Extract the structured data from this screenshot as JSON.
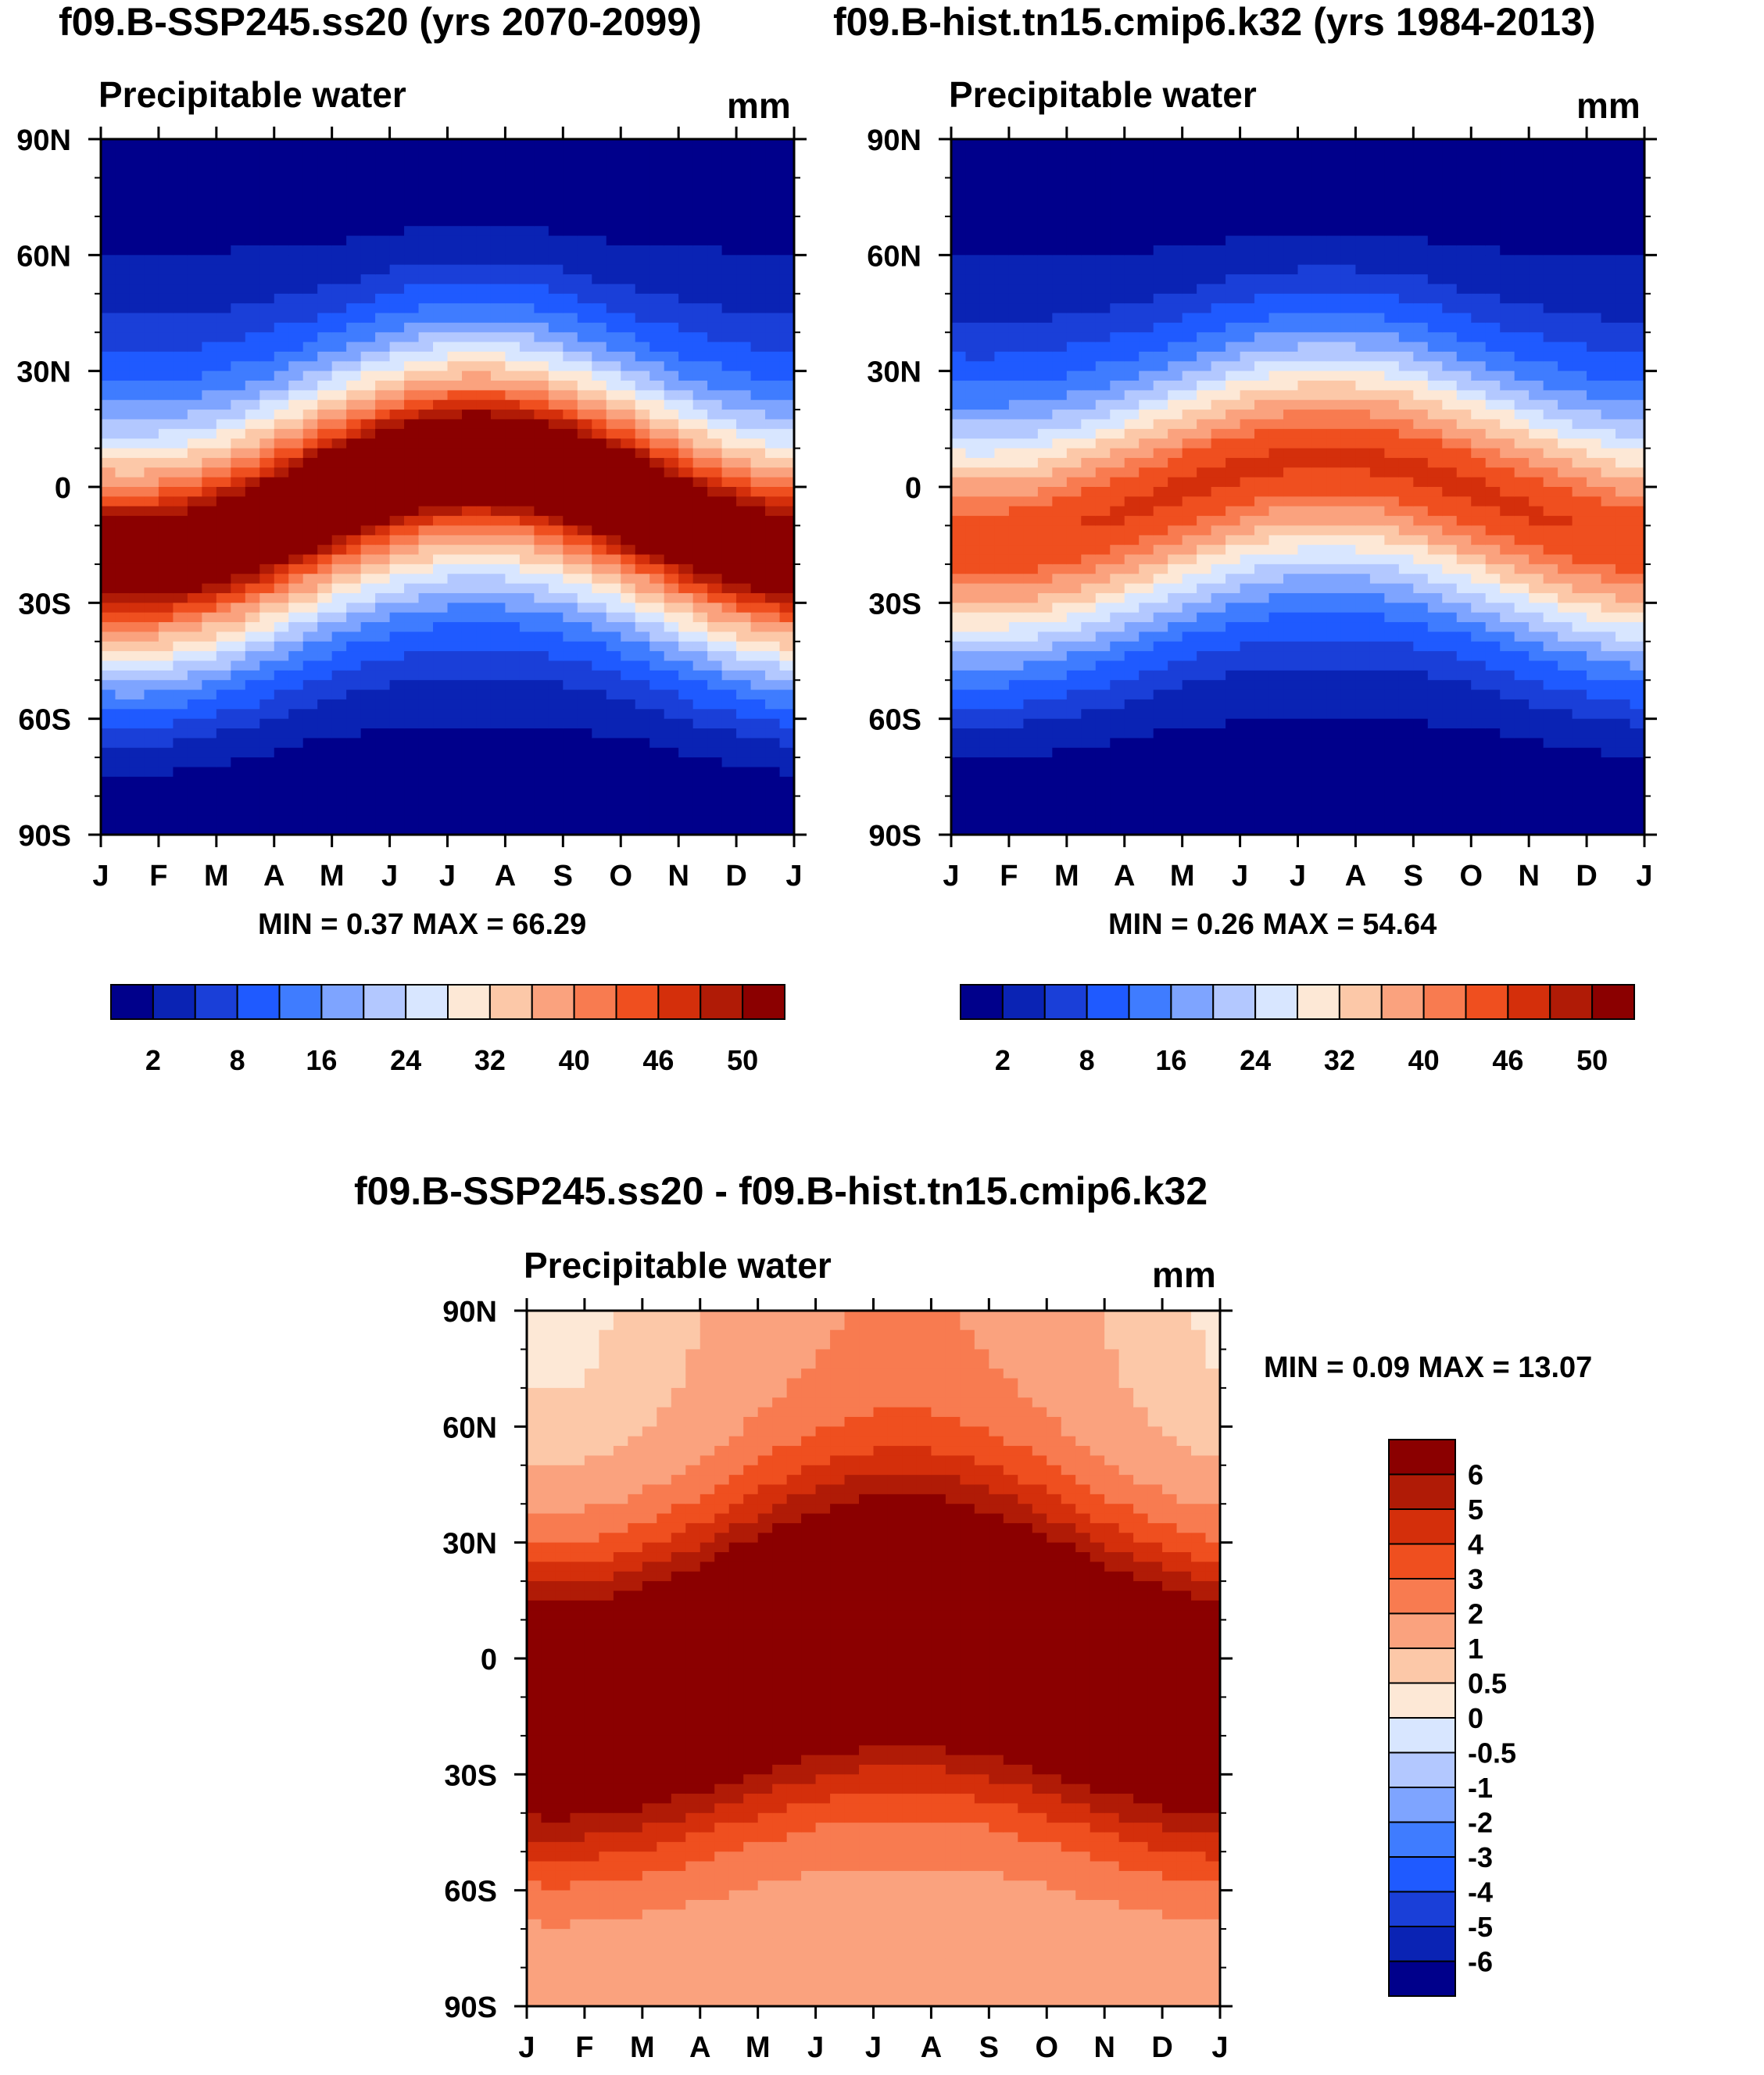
{
  "figure_titles": {
    "left": "f09.B-SSP245.ss20 (yrs 2070-2099)",
    "right": "f09.B-hist.tn15.cmip6.k32 (yrs 1984-2013)",
    "diff": "f09.B-SSP245.ss20 - f09.B-hist.tn15.cmip6.k32"
  },
  "colors": {
    "abs_scale": [
      "#00008b",
      "#0a23b4",
      "#1a3fd8",
      "#1f5aff",
      "#3f7cff",
      "#7ea4ff",
      "#b3c8ff",
      "#d8e6ff",
      "#fde8d6",
      "#fcc8a8",
      "#faa27e",
      "#f87b50",
      "#ef4f1f",
      "#d42f0b",
      "#b01b06",
      "#8b0000"
    ],
    "diff_scale": [
      "#00008b",
      "#0a23b4",
      "#1a3fd8",
      "#1f5aff",
      "#3f7cff",
      "#7ea4ff",
      "#b3c8ff",
      "#d8e6ff",
      "#fde8d6",
      "#fcc8a8",
      "#faa27e",
      "#f87b50",
      "#ef4f1f",
      "#d42f0b",
      "#b01b06",
      "#8b0000"
    ],
    "abs_colorbar": [
      "#00008b",
      "#0a23b4",
      "#1a3fd8",
      "#1f5aff",
      "#3f7cff",
      "#7ea4ff",
      "#b3c8ff",
      "#d8e6ff",
      "#fde8d6",
      "#fcc8a8",
      "#faa27e",
      "#f87b50",
      "#ef4f1f",
      "#d42f0b",
      "#b01b06",
      "#8b0000"
    ],
    "diff_colorbar": [
      "#8b0000",
      "#b01b06",
      "#d42f0b",
      "#ef4f1f",
      "#f87b50",
      "#faa27e",
      "#fcc8a8",
      "#fde8d6",
      "#d8e6ff",
      "#b3c8ff",
      "#7ea4ff",
      "#3f7cff",
      "#1f5aff",
      "#1a3fd8",
      "#0a23b4",
      "#00008b"
    ]
  },
  "chart_data": [
    {
      "id": "ssp245",
      "type": "heatmap",
      "title": "Precipitable water",
      "units": "mm",
      "x": [
        "J",
        "F",
        "M",
        "A",
        "M",
        "J",
        "J",
        "A",
        "S",
        "O",
        "N",
        "D",
        "J"
      ],
      "yticks": [
        "90N",
        "60N",
        "30N",
        "0",
        "30S",
        "60S",
        "90S"
      ],
      "ylim": [
        -90,
        90
      ],
      "min_label": "MIN =   0.37 MAX =  66.29",
      "contour_levels": [
        0,
        2,
        5,
        8,
        12,
        16,
        20,
        24,
        28,
        32,
        36,
        40,
        43,
        46,
        48,
        50
      ],
      "colorbar_labels": [
        "2",
        "8",
        "16",
        "24",
        "32",
        "40",
        "46",
        "50"
      ],
      "model": {
        "base": 18,
        "amp": 46,
        "center0": -6,
        "centerAmp": 14,
        "width": 30
      }
    },
    {
      "id": "hist",
      "type": "heatmap",
      "title": "Precipitable water",
      "units": "mm",
      "x": [
        "J",
        "F",
        "M",
        "A",
        "M",
        "J",
        "J",
        "A",
        "S",
        "O",
        "N",
        "D",
        "J"
      ],
      "yticks": [
        "90N",
        "60N",
        "30N",
        "0",
        "30S",
        "60S",
        "90S"
      ],
      "ylim": [
        -90,
        90
      ],
      "min_label": "MIN =   0.26 MAX =  54.64",
      "contour_levels": [
        0,
        2,
        5,
        8,
        12,
        16,
        20,
        24,
        28,
        32,
        36,
        40,
        43,
        46,
        48,
        50
      ],
      "colorbar_labels": [
        "2",
        "8",
        "16",
        "24",
        "32",
        "40",
        "46",
        "50"
      ],
      "model": {
        "base": 15,
        "amp": 37,
        "center0": -4,
        "centerAmp": 12,
        "width": 30
      }
    },
    {
      "id": "diff",
      "type": "heatmap",
      "title": "Precipitable water",
      "units": "mm",
      "x": [
        "J",
        "F",
        "M",
        "A",
        "M",
        "J",
        "J",
        "A",
        "S",
        "O",
        "N",
        "D",
        "J"
      ],
      "yticks": [
        "90N",
        "60N",
        "30N",
        "0",
        "30S",
        "60S",
        "90S"
      ],
      "ylim": [
        -90,
        90
      ],
      "min_label": "MIN =   0.09 MAX =  13.07",
      "contour_levels": [
        -99,
        -6,
        -5,
        -4,
        -3,
        -2,
        -1,
        -0.5,
        0,
        0.5,
        1,
        2,
        3,
        4,
        5,
        6
      ],
      "colorbar_labels": [
        "6",
        "5",
        "4",
        "3",
        "2",
        "1",
        "0.5",
        "0",
        "-0.5",
        "-1",
        "-2",
        "-3",
        "-4",
        "-5",
        "-6"
      ]
    }
  ]
}
